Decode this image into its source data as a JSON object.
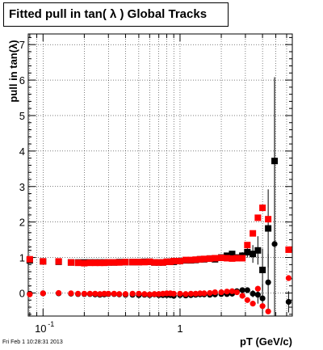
{
  "title": "Fitted pull in tan( λ )  Global Tracks",
  "footer": "Fri Feb  1 10:28:31 2013",
  "colors": {
    "black_series": "#000000",
    "red_series": "#ff0000"
  },
  "chart_data": {
    "type": "scatter",
    "title": "Fitted pull in tan( λ )  Global Tracks",
    "xlabel": "pT (GeV/c)",
    "ylabel": "pull in tan(λ)",
    "xscale": "log",
    "xlim": [
      0.078,
      6.6
    ],
    "ylim": [
      -0.65,
      7.3
    ],
    "grid": true,
    "x_tick_labels": [
      {
        "x": 0.1,
        "base": "10",
        "exp": "-1"
      },
      {
        "x": 1,
        "base": "1",
        "exp": ""
      }
    ],
    "y_ticks": [
      0,
      1,
      2,
      3,
      4,
      5,
      6,
      7
    ],
    "series": [
      {
        "color": "#000000",
        "marker": "square",
        "points": [
          [
            0.08,
            0.92
          ],
          [
            0.1,
            0.89
          ],
          [
            0.13,
            0.88
          ],
          [
            0.16,
            0.86
          ],
          [
            0.18,
            0.86
          ],
          [
            0.2,
            0.86
          ],
          [
            0.22,
            0.86
          ],
          [
            0.24,
            0.86
          ],
          [
            0.26,
            0.86
          ],
          [
            0.28,
            0.86
          ],
          [
            0.3,
            0.86
          ],
          [
            0.33,
            0.86
          ],
          [
            0.36,
            0.87
          ],
          [
            0.4,
            0.87
          ],
          [
            0.45,
            0.87
          ],
          [
            0.5,
            0.87
          ],
          [
            0.55,
            0.88
          ],
          [
            0.6,
            0.88
          ],
          [
            0.65,
            0.86
          ],
          [
            0.7,
            0.86
          ],
          [
            0.75,
            0.86
          ],
          [
            0.8,
            0.88
          ],
          [
            0.85,
            0.88
          ],
          [
            0.9,
            0.88
          ],
          [
            1.0,
            0.9
          ],
          [
            1.1,
            0.92
          ],
          [
            1.2,
            0.92
          ],
          [
            1.3,
            0.93
          ],
          [
            1.4,
            0.95
          ],
          [
            1.5,
            0.95
          ],
          [
            1.65,
            0.97
          ],
          [
            1.8,
            0.95
          ],
          [
            2.0,
            1.0
          ],
          [
            2.2,
            1.05
          ],
          [
            2.4,
            1.1
          ],
          [
            2.6,
            1.0
          ],
          [
            2.85,
            1.05
          ],
          [
            3.1,
            1.15
          ],
          [
            3.4,
            1.1
          ],
          [
            3.7,
            1.2
          ],
          [
            4.0,
            0.65
          ],
          [
            4.4,
            1.82
          ],
          [
            4.9,
            3.72
          ]
        ],
        "errors": [
          [
            0.08,
            0.05
          ],
          [
            0.1,
            0.04
          ],
          [
            2.6,
            0.05
          ],
          [
            2.85,
            0.1
          ],
          [
            3.1,
            0.15
          ],
          [
            3.4,
            0.25
          ],
          [
            3.7,
            0.4
          ],
          [
            4.0,
            0.6
          ],
          [
            4.4,
            1.1
          ],
          [
            4.9,
            2.3
          ]
        ]
      },
      {
        "color": "#ff0000",
        "marker": "square",
        "points": [
          [
            0.08,
            0.95
          ],
          [
            0.1,
            0.89
          ],
          [
            0.13,
            0.89
          ],
          [
            0.16,
            0.86
          ],
          [
            0.18,
            0.85
          ],
          [
            0.2,
            0.84
          ],
          [
            0.22,
            0.85
          ],
          [
            0.24,
            0.85
          ],
          [
            0.26,
            0.85
          ],
          [
            0.28,
            0.85
          ],
          [
            0.3,
            0.86
          ],
          [
            0.33,
            0.86
          ],
          [
            0.36,
            0.86
          ],
          [
            0.4,
            0.87
          ],
          [
            0.45,
            0.87
          ],
          [
            0.5,
            0.87
          ],
          [
            0.55,
            0.87
          ],
          [
            0.6,
            0.88
          ],
          [
            0.65,
            0.86
          ],
          [
            0.7,
            0.86
          ],
          [
            0.75,
            0.86
          ],
          [
            0.8,
            0.88
          ],
          [
            0.85,
            0.88
          ],
          [
            0.9,
            0.9
          ],
          [
            1.0,
            0.9
          ],
          [
            1.1,
            0.93
          ],
          [
            1.2,
            0.93
          ],
          [
            1.3,
            0.94
          ],
          [
            1.4,
            0.95
          ],
          [
            1.5,
            0.96
          ],
          [
            1.65,
            0.97
          ],
          [
            1.8,
            0.98
          ],
          [
            2.0,
            0.99
          ],
          [
            2.2,
            0.98
          ],
          [
            2.4,
            0.97
          ],
          [
            2.6,
            0.98
          ],
          [
            2.85,
            0.98
          ],
          [
            3.1,
            1.35
          ],
          [
            3.4,
            1.68
          ],
          [
            3.7,
            2.12
          ],
          [
            4.0,
            2.4
          ],
          [
            4.4,
            2.08
          ],
          [
            6.2,
            1.22
          ]
        ]
      },
      {
        "color": "#000000",
        "marker": "circle",
        "points": [
          [
            0.08,
            -0.02
          ],
          [
            0.1,
            -0.01
          ],
          [
            0.13,
            -0.01
          ],
          [
            0.16,
            -0.02
          ],
          [
            0.18,
            -0.03
          ],
          [
            0.2,
            -0.03
          ],
          [
            0.22,
            -0.03
          ],
          [
            0.24,
            -0.04
          ],
          [
            0.26,
            -0.05
          ],
          [
            0.28,
            -0.04
          ],
          [
            0.3,
            -0.03
          ],
          [
            0.33,
            -0.03
          ],
          [
            0.36,
            -0.04
          ],
          [
            0.4,
            -0.05
          ],
          [
            0.45,
            -0.05
          ],
          [
            0.5,
            -0.06
          ],
          [
            0.55,
            -0.05
          ],
          [
            0.6,
            -0.06
          ],
          [
            0.65,
            -0.04
          ],
          [
            0.7,
            -0.06
          ],
          [
            0.75,
            -0.06
          ],
          [
            0.8,
            -0.06
          ],
          [
            0.85,
            -0.06
          ],
          [
            0.9,
            -0.08
          ],
          [
            1.0,
            -0.06
          ],
          [
            1.1,
            -0.07
          ],
          [
            1.2,
            -0.06
          ],
          [
            1.3,
            -0.05
          ],
          [
            1.4,
            -0.04
          ],
          [
            1.5,
            -0.04
          ],
          [
            1.65,
            -0.05
          ],
          [
            1.8,
            -0.04
          ],
          [
            2.0,
            -0.03
          ],
          [
            2.2,
            -0.03
          ],
          [
            2.4,
            -0.02
          ],
          [
            2.6,
            0.05
          ],
          [
            2.85,
            0.08
          ],
          [
            3.1,
            0.08
          ],
          [
            3.4,
            -0.02
          ],
          [
            3.7,
            -0.05
          ],
          [
            4.0,
            -0.15
          ],
          [
            4.4,
            0.3
          ],
          [
            4.9,
            1.38
          ],
          [
            6.2,
            -0.25
          ]
        ],
        "errors": [
          [
            3.4,
            0.1
          ],
          [
            3.7,
            0.25
          ],
          [
            4.0,
            0.4
          ],
          [
            4.4,
            0.8
          ],
          [
            4.9,
            4.7
          ],
          [
            6.2,
            0.3
          ]
        ]
      },
      {
        "color": "#ff0000",
        "marker": "circle",
        "points": [
          [
            0.08,
            -0.04
          ],
          [
            0.1,
            -0.01
          ],
          [
            0.13,
            0.0
          ],
          [
            0.16,
            -0.01
          ],
          [
            0.18,
            -0.02
          ],
          [
            0.2,
            -0.02
          ],
          [
            0.22,
            -0.02
          ],
          [
            0.24,
            -0.02
          ],
          [
            0.26,
            -0.03
          ],
          [
            0.28,
            -0.02
          ],
          [
            0.3,
            -0.02
          ],
          [
            0.33,
            -0.02
          ],
          [
            0.36,
            -0.03
          ],
          [
            0.4,
            -0.03
          ],
          [
            0.45,
            -0.02
          ],
          [
            0.5,
            -0.02
          ],
          [
            0.55,
            -0.03
          ],
          [
            0.6,
            -0.04
          ],
          [
            0.65,
            -0.03
          ],
          [
            0.7,
            -0.03
          ],
          [
            0.75,
            -0.02
          ],
          [
            0.8,
            -0.01
          ],
          [
            0.85,
            -0.01
          ],
          [
            0.9,
            -0.02
          ],
          [
            1.0,
            -0.02
          ],
          [
            1.1,
            -0.03
          ],
          [
            1.2,
            -0.02
          ],
          [
            1.3,
            -0.02
          ],
          [
            1.4,
            -0.01
          ],
          [
            1.5,
            -0.01
          ],
          [
            1.65,
            0.0
          ],
          [
            1.8,
            0.02
          ],
          [
            2.0,
            0.02
          ],
          [
            2.2,
            0.04
          ],
          [
            2.4,
            0.05
          ],
          [
            2.6,
            0.02
          ],
          [
            2.85,
            -0.08
          ],
          [
            3.1,
            -0.2
          ],
          [
            3.4,
            -0.3
          ],
          [
            3.7,
            0.12
          ],
          [
            4.0,
            -0.37
          ],
          [
            4.4,
            -0.52
          ],
          [
            6.2,
            0.42
          ]
        ]
      }
    ]
  }
}
